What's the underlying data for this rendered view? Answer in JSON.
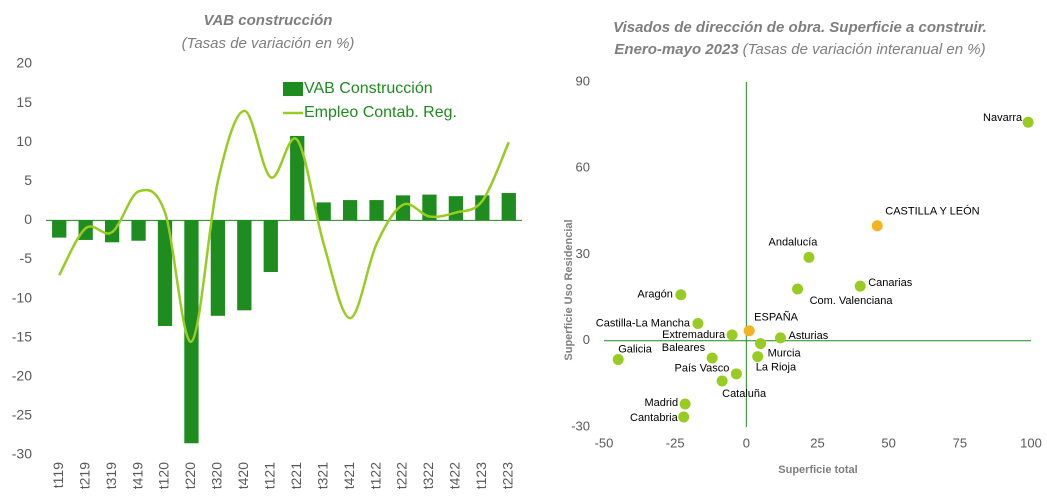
{
  "chart_data": [
    {
      "type": "bar-line",
      "title": "VAB construcción",
      "subtitle": "(Tasas de variación en %)",
      "categories": [
        "t119",
        "t219",
        "t319",
        "t419",
        "t120",
        "t220",
        "t320",
        "t420",
        "t121",
        "t221",
        "t321",
        "t421",
        "t122",
        "t222",
        "t322",
        "t422",
        "t123",
        "t223"
      ],
      "series": [
        {
          "name": "VAB Construcción",
          "type": "bar",
          "color": "#1e8c1e",
          "values": [
            -2.2,
            -2.5,
            -2.8,
            -2.6,
            -13.5,
            -28.5,
            -12.2,
            -11.5,
            -6.6,
            10.8,
            2.3,
            2.6,
            2.6,
            3.2,
            3.3,
            3.1,
            3.2,
            3.5
          ]
        },
        {
          "name": "Empleo Contab. Reg.",
          "type": "line",
          "color": "#99cc22",
          "values": [
            -7,
            -1,
            -1.5,
            3.7,
            1,
            -15.5,
            5,
            14,
            5.5,
            10.3,
            -3,
            -12.5,
            -3,
            2,
            0.5,
            1,
            2.5,
            10
          ]
        }
      ],
      "ylim": [
        -30,
        20
      ],
      "yticks": [
        -30,
        -25,
        -20,
        -15,
        -10,
        -5,
        0,
        5,
        10,
        15,
        20
      ]
    },
    {
      "type": "scatter",
      "title": [
        "Visados de dirección de obra. Superficie a construir.",
        "Enero-mayo 2023"
      ],
      "subtitle": "(Tasas de variación interanual en %)",
      "xlabel": "Superficie total",
      "ylabel": "Superficie Uso Residencial",
      "labels": [
        "Navarra",
        "CASTILLA Y LEÓN",
        "Andalucía",
        "Canarias",
        "Com. Valenciana",
        "Aragón",
        "Castilla-La Mancha",
        "ESPAÑA",
        "Extremadura",
        "Asturias",
        "Baleares",
        "Murcia",
        "La Rioja",
        "Galicia",
        "País Vasco",
        "Cataluña",
        "Madrid",
        "Cantabria"
      ],
      "x": [
        99,
        46,
        22,
        40,
        18,
        -23,
        -17,
        1,
        -5,
        12,
        -12,
        5,
        4,
        -45,
        -3.5,
        -8.5,
        -21.5,
        -22
      ],
      "y": [
        76,
        40,
        29,
        19,
        18,
        16,
        6,
        3.5,
        2,
        1,
        -6,
        -1,
        -5.5,
        -6.5,
        -11.5,
        -14,
        -22,
        -26.5
      ],
      "colors": [
        "#99cc22",
        "#f5b323",
        "#99cc22",
        "#99cc22",
        "#99cc22",
        "#99cc22",
        "#99cc22",
        "#f5b323",
        "#99cc22",
        "#99cc22",
        "#99cc22",
        "#99cc22",
        "#99cc22",
        "#99cc22",
        "#99cc22",
        "#99cc22",
        "#99cc22",
        "#99cc22"
      ],
      "axis_color": "#1e8c1e",
      "xlim": [
        -50,
        100
      ],
      "xticks": [
        -50,
        -25,
        0,
        25,
        50,
        75,
        100
      ],
      "ylim": [
        -30,
        90
      ],
      "yticks": [
        -30,
        0,
        30,
        60,
        90
      ]
    }
  ]
}
